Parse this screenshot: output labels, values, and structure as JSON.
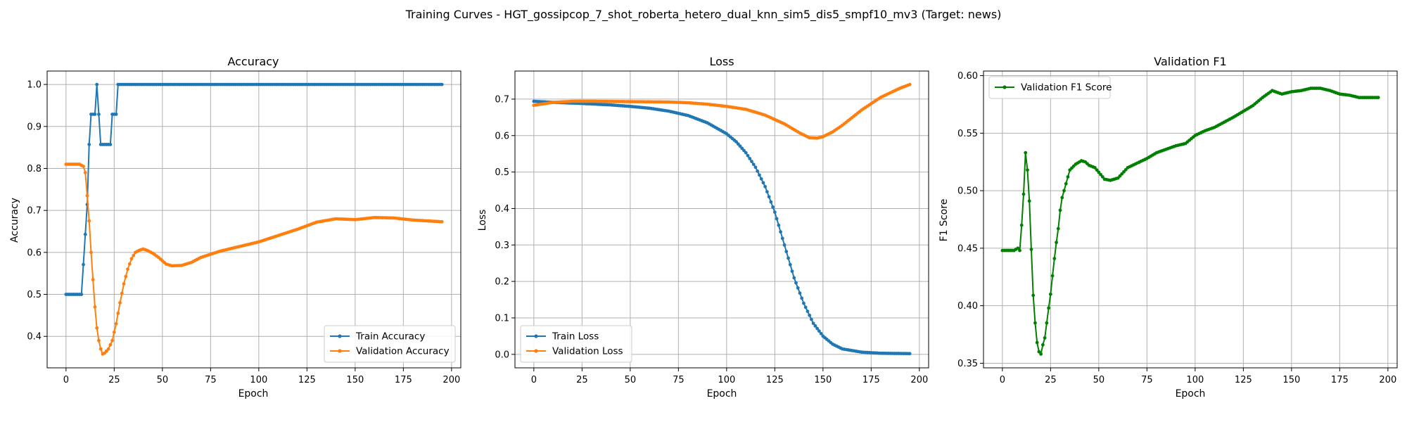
{
  "figure": {
    "suptitle": "Training Curves - HGT_gossipcop_7_shot_roberta_hetero_dual_knn_sim5_dis5_smpf10_mv3 (Target: news)"
  },
  "chart_data": [
    {
      "type": "line",
      "title": "Accuracy",
      "xlabel": "Epoch",
      "ylabel": "Accuracy",
      "xlim": [
        -9.8,
        204.8
      ],
      "ylim": [
        0.325,
        1.032
      ],
      "xticks": [
        0,
        25,
        50,
        75,
        100,
        125,
        150,
        175,
        200
      ],
      "yticks": [
        0.4,
        0.5,
        0.6,
        0.7,
        0.8,
        0.9,
        1.0
      ],
      "ytick_decimals": 1,
      "grid": true,
      "legend": "lower right",
      "series": [
        {
          "name": "Train Accuracy",
          "color": "#1f77b4",
          "anchors": [
            [
              0,
              0.5
            ],
            [
              8,
              0.5
            ],
            [
              9,
              0.571
            ],
            [
              10,
              0.643
            ],
            [
              11,
              0.714
            ],
            [
              12,
              0.857
            ],
            [
              13,
              0.929
            ],
            [
              15,
              0.929
            ],
            [
              16,
              1.0
            ],
            [
              17,
              0.929
            ],
            [
              18,
              0.857
            ],
            [
              23,
              0.857
            ],
            [
              24,
              0.929
            ],
            [
              26,
              0.929
            ],
            [
              27,
              1.0
            ],
            [
              195,
              1.0
            ]
          ]
        },
        {
          "name": "Validation Accuracy",
          "color": "#ff7f0e",
          "anchors": [
            [
              0,
              0.81
            ],
            [
              7,
              0.81
            ],
            [
              9,
              0.805
            ],
            [
              10,
              0.79
            ],
            [
              11,
              0.735
            ],
            [
              12,
              0.675
            ],
            [
              13,
              0.6
            ],
            [
              14,
              0.535
            ],
            [
              15,
              0.47
            ],
            [
              16,
              0.42
            ],
            [
              17,
              0.39
            ],
            [
              18,
              0.37
            ],
            [
              19,
              0.358
            ],
            [
              20,
              0.36
            ],
            [
              22,
              0.37
            ],
            [
              24,
              0.39
            ],
            [
              26,
              0.43
            ],
            [
              28,
              0.48
            ],
            [
              30,
              0.525
            ],
            [
              32,
              0.56
            ],
            [
              34,
              0.585
            ],
            [
              36,
              0.6
            ],
            [
              38,
              0.605
            ],
            [
              40,
              0.608
            ],
            [
              42,
              0.605
            ],
            [
              45,
              0.598
            ],
            [
              48,
              0.588
            ],
            [
              52,
              0.572
            ],
            [
              55,
              0.568
            ],
            [
              60,
              0.569
            ],
            [
              65,
              0.576
            ],
            [
              70,
              0.588
            ],
            [
              80,
              0.603
            ],
            [
              90,
              0.614
            ],
            [
              100,
              0.625
            ],
            [
              110,
              0.64
            ],
            [
              120,
              0.655
            ],
            [
              130,
              0.672
            ],
            [
              140,
              0.68
            ],
            [
              150,
              0.678
            ],
            [
              160,
              0.683
            ],
            [
              170,
              0.682
            ],
            [
              180,
              0.677
            ],
            [
              195,
              0.673
            ]
          ]
        }
      ]
    },
    {
      "type": "line",
      "title": "Loss",
      "xlabel": "Epoch",
      "ylabel": "Loss",
      "xlim": [
        -9.8,
        204.8
      ],
      "ylim": [
        -0.037,
        0.777
      ],
      "xticks": [
        0,
        25,
        50,
        75,
        100,
        125,
        150,
        175,
        200
      ],
      "yticks": [
        0.0,
        0.1,
        0.2,
        0.3,
        0.4,
        0.5,
        0.6,
        0.7
      ],
      "ytick_decimals": 1,
      "grid": true,
      "legend": "lower left",
      "series": [
        {
          "name": "Train Loss",
          "color": "#1f77b4",
          "anchors": [
            [
              0,
              0.694
            ],
            [
              10,
              0.691
            ],
            [
              25,
              0.688
            ],
            [
              40,
              0.684
            ],
            [
              50,
              0.68
            ],
            [
              60,
              0.675
            ],
            [
              70,
              0.667
            ],
            [
              80,
              0.655
            ],
            [
              90,
              0.635
            ],
            [
              100,
              0.605
            ],
            [
              105,
              0.583
            ],
            [
              110,
              0.553
            ],
            [
              115,
              0.513
            ],
            [
              120,
              0.46
            ],
            [
              125,
              0.39
            ],
            [
              130,
              0.3
            ],
            [
              135,
              0.21
            ],
            [
              140,
              0.14
            ],
            [
              145,
              0.085
            ],
            [
              150,
              0.05
            ],
            [
              155,
              0.028
            ],
            [
              160,
              0.015
            ],
            [
              170,
              0.006
            ],
            [
              180,
              0.003
            ],
            [
              195,
              0.002
            ]
          ]
        },
        {
          "name": "Validation Loss",
          "color": "#ff7f0e",
          "anchors": [
            [
              0,
              0.683
            ],
            [
              5,
              0.687
            ],
            [
              10,
              0.691
            ],
            [
              20,
              0.694
            ],
            [
              30,
              0.694
            ],
            [
              50,
              0.693
            ],
            [
              70,
              0.692
            ],
            [
              80,
              0.69
            ],
            [
              90,
              0.686
            ],
            [
              100,
              0.68
            ],
            [
              110,
              0.672
            ],
            [
              120,
              0.656
            ],
            [
              130,
              0.632
            ],
            [
              138,
              0.607
            ],
            [
              143,
              0.594
            ],
            [
              147,
              0.593
            ],
            [
              150,
              0.597
            ],
            [
              155,
              0.61
            ],
            [
              160,
              0.628
            ],
            [
              170,
              0.67
            ],
            [
              180,
              0.705
            ],
            [
              190,
              0.73
            ],
            [
              195,
              0.74
            ]
          ]
        }
      ]
    },
    {
      "type": "line",
      "title": "Validation F1",
      "xlabel": "Epoch",
      "ylabel": "F1 Score",
      "xlim": [
        -9.8,
        204.8
      ],
      "ylim": [
        0.346,
        0.604
      ],
      "xticks": [
        0,
        25,
        50,
        75,
        100,
        125,
        150,
        175,
        200
      ],
      "yticks": [
        0.35,
        0.4,
        0.45,
        0.5,
        0.55,
        0.6
      ],
      "ytick_decimals": 2,
      "grid": true,
      "legend": "upper left",
      "series": [
        {
          "name": "Validation F1 Score",
          "color": "#008000",
          "anchors": [
            [
              0,
              0.448
            ],
            [
              6,
              0.448
            ],
            [
              8,
              0.45
            ],
            [
              9,
              0.448
            ],
            [
              10,
              0.47
            ],
            [
              11,
              0.497
            ],
            [
              12,
              0.533
            ],
            [
              13,
              0.518
            ],
            [
              14,
              0.491
            ],
            [
              15,
              0.449
            ],
            [
              16,
              0.409
            ],
            [
              17,
              0.385
            ],
            [
              18,
              0.368
            ],
            [
              19,
              0.36
            ],
            [
              20,
              0.358
            ],
            [
              21,
              0.366
            ],
            [
              22,
              0.372
            ],
            [
              23,
              0.385
            ],
            [
              24,
              0.398
            ],
            [
              25,
              0.41
            ],
            [
              26,
              0.426
            ],
            [
              27,
              0.441
            ],
            [
              28,
              0.455
            ],
            [
              29,
              0.467
            ],
            [
              30,
              0.483
            ],
            [
              31,
              0.494
            ],
            [
              33,
              0.506
            ],
            [
              35,
              0.518
            ],
            [
              38,
              0.523
            ],
            [
              41,
              0.526
            ],
            [
              43,
              0.525
            ],
            [
              45,
              0.522
            ],
            [
              48,
              0.52
            ],
            [
              50,
              0.516
            ],
            [
              53,
              0.51
            ],
            [
              56,
              0.509
            ],
            [
              60,
              0.511
            ],
            [
              65,
              0.52
            ],
            [
              70,
              0.524
            ],
            [
              75,
              0.528
            ],
            [
              80,
              0.533
            ],
            [
              85,
              0.536
            ],
            [
              90,
              0.539
            ],
            [
              95,
              0.541
            ],
            [
              100,
              0.548
            ],
            [
              105,
              0.552
            ],
            [
              110,
              0.555
            ],
            [
              120,
              0.564
            ],
            [
              130,
              0.574
            ],
            [
              135,
              0.581
            ],
            [
              140,
              0.587
            ],
            [
              145,
              0.584
            ],
            [
              150,
              0.586
            ],
            [
              155,
              0.587
            ],
            [
              160,
              0.589
            ],
            [
              165,
              0.589
            ],
            [
              170,
              0.587
            ],
            [
              175,
              0.584
            ],
            [
              180,
              0.583
            ],
            [
              185,
              0.581
            ],
            [
              195,
              0.581
            ]
          ]
        }
      ]
    }
  ]
}
